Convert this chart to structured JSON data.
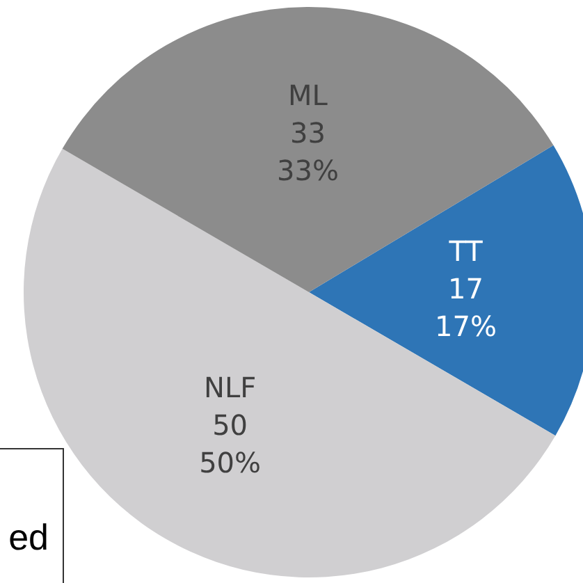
{
  "chart_data": {
    "type": "pie",
    "categories": [
      "TT",
      "NLF",
      "ML"
    ],
    "values": [
      17,
      50,
      33
    ],
    "colors": [
      "#2e75b6",
      "#d0cfd1",
      "#8c8c8c"
    ],
    "value_labels": [
      "17\n17%",
      "50\n50%",
      "33\n33%"
    ],
    "annotations": [
      "ed"
    ]
  }
}
